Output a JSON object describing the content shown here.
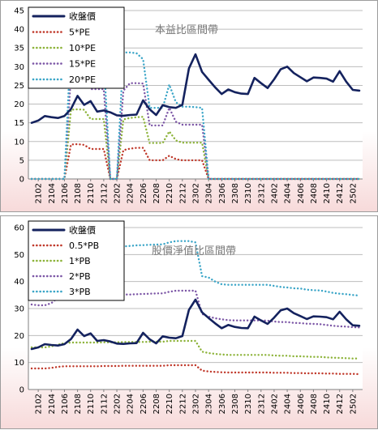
{
  "chart_data": [
    {
      "type": "line",
      "title": "本益比區間帶",
      "xlabel": "",
      "ylabel": "",
      "ylim": [
        0,
        45
      ],
      "yticks": [
        0,
        5,
        10,
        15,
        20,
        25,
        30,
        35,
        40,
        45
      ],
      "grid": "horizontal",
      "legend": "top-left",
      "x": [
        "2101",
        "2102",
        "2103",
        "2104",
        "2105",
        "2106",
        "2107",
        "2108",
        "2109",
        "2110",
        "2111",
        "2112",
        "2201",
        "2202",
        "2203",
        "2204",
        "2205",
        "2206",
        "2207",
        "2208",
        "2209",
        "2210",
        "2211",
        "2212",
        "2301",
        "2302",
        "2303",
        "2304",
        "2305",
        "2306",
        "2307",
        "2308",
        "2309",
        "2310",
        "2311",
        "2312",
        "2401",
        "2402",
        "2403",
        "2404",
        "2405",
        "2406",
        "2407",
        "2408",
        "2409",
        "2410",
        "2411",
        "2412",
        "2501",
        "2502",
        "2503"
      ],
      "xtick_labels": [
        "2102",
        "2104",
        "2106",
        "2108",
        "2110",
        "2112",
        "2202",
        "2204",
        "2206",
        "2208",
        "2210",
        "2212",
        "2302",
        "2304",
        "2306",
        "2308",
        "2310",
        "2312",
        "2402",
        "2404",
        "2406",
        "2408",
        "2410",
        "2412",
        "2502"
      ],
      "series": [
        {
          "name": "收盤價",
          "color": "#14225e",
          "style": "solid",
          "values": [
            15,
            15.6,
            16.8,
            16.5,
            16.3,
            16.8,
            18.7,
            22.2,
            19.8,
            20.8,
            18,
            18.3,
            17.8,
            17,
            16.9,
            17.1,
            17.2,
            21,
            18.6,
            17.1,
            19.7,
            19.2,
            19,
            19.8,
            29.5,
            33.3,
            28.6,
            26.5,
            24.5,
            22.7,
            23.9,
            23.2,
            22.8,
            22.7,
            27,
            25.6,
            24.3,
            26.6,
            29.3,
            30,
            28.3,
            27.2,
            26.1,
            27.1,
            27,
            26.8,
            26,
            28.8,
            26,
            23.8,
            23.6
          ]
        },
        {
          "name": "5*PE",
          "color": "#c0392b",
          "style": "dotted",
          "values": [
            0,
            0,
            0,
            0,
            0,
            0,
            9.2,
            9.3,
            9.1,
            8,
            8,
            8,
            0,
            0,
            7.7,
            8.1,
            8.3,
            8.3,
            5,
            5,
            5,
            6.2,
            5.3,
            5,
            5,
            5,
            5,
            0,
            0,
            0,
            0,
            0,
            0,
            0,
            0,
            0,
            0,
            0,
            0,
            0,
            0,
            0,
            0,
            0,
            0,
            0,
            0,
            0,
            0,
            0,
            0
          ]
        },
        {
          "name": "10*PE",
          "color": "#8db33a",
          "style": "dotted",
          "values": [
            0,
            0,
            0,
            0,
            0,
            0,
            18.5,
            18.6,
            18.5,
            16,
            16,
            16,
            0,
            0,
            15.9,
            16.3,
            16.5,
            16.6,
            9.6,
            9.6,
            9.6,
            12.7,
            10.3,
            9.7,
            9.7,
            9.7,
            9.7,
            0,
            0,
            0,
            0,
            0,
            0,
            0,
            0,
            0,
            0,
            0,
            0,
            0,
            0,
            0,
            0,
            0,
            0,
            0,
            0,
            0,
            0,
            0,
            0
          ]
        },
        {
          "name": "15*PE",
          "color": "#7c56a6",
          "style": "dotted",
          "values": [
            0,
            0,
            0,
            0,
            0,
            0,
            27.8,
            28,
            27.8,
            24,
            24,
            24,
            0,
            0,
            23.6,
            25.6,
            25.6,
            25.5,
            14.3,
            14.3,
            14.3,
            19,
            15.3,
            14.5,
            14.5,
            14.5,
            14.5,
            0,
            0,
            0,
            0,
            0,
            0,
            0,
            0,
            0,
            0,
            0,
            0,
            0,
            0,
            0,
            0,
            0,
            0,
            0,
            0,
            0,
            0,
            0,
            0
          ]
        },
        {
          "name": "20*PE",
          "color": "#3aa5c7",
          "style": "dotted",
          "values": [
            0,
            0,
            0,
            0,
            0,
            0,
            37,
            37.2,
            37,
            32,
            32,
            32,
            0,
            0,
            33.8,
            33.8,
            33.6,
            32,
            19,
            19,
            19,
            25.2,
            20.5,
            19.3,
            19.3,
            19.2,
            19,
            0,
            0,
            0,
            0,
            0,
            0,
            0,
            0,
            0,
            0,
            0,
            0,
            0,
            0,
            0,
            0,
            0,
            0,
            0,
            0,
            0,
            0,
            0,
            0
          ]
        }
      ]
    },
    {
      "type": "line",
      "title": "股價淨值比區間帶",
      "xlabel": "",
      "ylabel": "",
      "ylim": [
        0,
        60
      ],
      "yticks": [
        0,
        10,
        20,
        30,
        40,
        50,
        60
      ],
      "grid": "horizontal",
      "legend": "top-left",
      "x": [
        "2101",
        "2102",
        "2103",
        "2104",
        "2105",
        "2106",
        "2107",
        "2108",
        "2109",
        "2110",
        "2111",
        "2112",
        "2201",
        "2202",
        "2203",
        "2204",
        "2205",
        "2206",
        "2207",
        "2208",
        "2209",
        "2210",
        "2211",
        "2212",
        "2301",
        "2302",
        "2303",
        "2304",
        "2305",
        "2306",
        "2307",
        "2308",
        "2309",
        "2310",
        "2311",
        "2312",
        "2401",
        "2402",
        "2403",
        "2404",
        "2405",
        "2406",
        "2407",
        "2408",
        "2409",
        "2410",
        "2411",
        "2412",
        "2501",
        "2502",
        "2503"
      ],
      "xtick_labels": [
        "2102",
        "2104",
        "2106",
        "2108",
        "2110",
        "2112",
        "2202",
        "2204",
        "2206",
        "2208",
        "2210",
        "2212",
        "2302",
        "2304",
        "2306",
        "2308",
        "2310",
        "2312",
        "2402",
        "2404",
        "2406",
        "2408",
        "2410",
        "2412",
        "2502"
      ],
      "series": [
        {
          "name": "收盤價",
          "color": "#14225e",
          "style": "solid",
          "values": [
            15,
            15.6,
            16.8,
            16.5,
            16.3,
            16.8,
            18.7,
            22.2,
            19.8,
            20.8,
            18,
            18.3,
            17.8,
            17,
            16.9,
            17.1,
            17.2,
            21,
            18.6,
            17.1,
            19.7,
            19.2,
            19,
            19.8,
            29.5,
            33.3,
            28.6,
            26.5,
            24.5,
            22.7,
            23.9,
            23.2,
            22.8,
            22.7,
            27,
            25.6,
            24.3,
            26.6,
            29.3,
            30,
            28.3,
            27.2,
            26.1,
            27.1,
            27,
            26.8,
            26,
            28.8,
            26,
            23.8,
            23.6
          ]
        },
        {
          "name": "0.5*PB",
          "color": "#c0392b",
          "style": "dotted",
          "values": [
            7.8,
            7.8,
            7.8,
            8,
            8.4,
            8.6,
            8.6,
            8.6,
            8.6,
            8.6,
            8.6,
            8.7,
            8.7,
            8.7,
            8.8,
            8.8,
            8.8,
            8.8,
            8.8,
            8.8,
            8.8,
            9,
            9,
            9,
            9,
            9,
            7,
            6.7,
            6.5,
            6.4,
            6.3,
            6.3,
            6.3,
            6.3,
            6.3,
            6.3,
            6.3,
            6.2,
            6.2,
            6.2,
            6.1,
            6.1,
            6,
            6,
            6,
            5.9,
            5.9,
            5.8,
            5.8,
            5.8,
            5.7
          ]
        },
        {
          "name": "1*PB",
          "color": "#8db33a",
          "style": "dotted",
          "values": [
            15.6,
            15.6,
            15.6,
            16,
            16.6,
            17.2,
            17.4,
            17.4,
            17.4,
            17.4,
            17.4,
            17.5,
            17.5,
            17.5,
            17.6,
            17.6,
            17.6,
            17.6,
            17.7,
            17.7,
            17.7,
            18,
            18,
            18,
            18,
            18,
            14,
            13.5,
            13.2,
            13,
            12.8,
            12.8,
            12.8,
            12.8,
            12.8,
            12.8,
            12.8,
            12.6,
            12.5,
            12.5,
            12.3,
            12.3,
            12.2,
            12.1,
            12.1,
            11.9,
            11.8,
            11.7,
            11.6,
            11.5,
            11.5
          ]
        },
        {
          "name": "2*PB",
          "color": "#7c56a6",
          "style": "dotted",
          "values": [
            31.5,
            31.2,
            31.2,
            32,
            34,
            34.6,
            34.8,
            34.8,
            34.8,
            34.8,
            34.8,
            34.9,
            35,
            35,
            35.2,
            35.2,
            35.3,
            35.4,
            35.5,
            35.6,
            35.6,
            36.2,
            36.6,
            36.6,
            36.6,
            36.6,
            28,
            27,
            26.4,
            26,
            25.7,
            25.6,
            25.6,
            25.6,
            25.6,
            25.6,
            25.5,
            25.2,
            25,
            25,
            24.7,
            24.6,
            24.4,
            24.3,
            24.2,
            23.9,
            23.6,
            23.4,
            23.3,
            23.1,
            23
          ]
        },
        {
          "name": "3*PB",
          "color": "#3aa5c7",
          "style": "dotted",
          "values": [
            47,
            47,
            47.2,
            48,
            50,
            51,
            51.5,
            51.5,
            51.5,
            51.8,
            52,
            52.3,
            52.5,
            52.6,
            53,
            53.2,
            53.4,
            53.5,
            53.6,
            53.7,
            53.8,
            54.5,
            55,
            55,
            55,
            54.5,
            42,
            41.5,
            40,
            39,
            38.8,
            38.8,
            38.8,
            38.8,
            38.8,
            38.8,
            38.8,
            38.4,
            38,
            37.8,
            37.5,
            37.4,
            37,
            36.8,
            36.7,
            36.3,
            35.8,
            35.5,
            35.3,
            35,
            34.8
          ]
        }
      ]
    }
  ]
}
